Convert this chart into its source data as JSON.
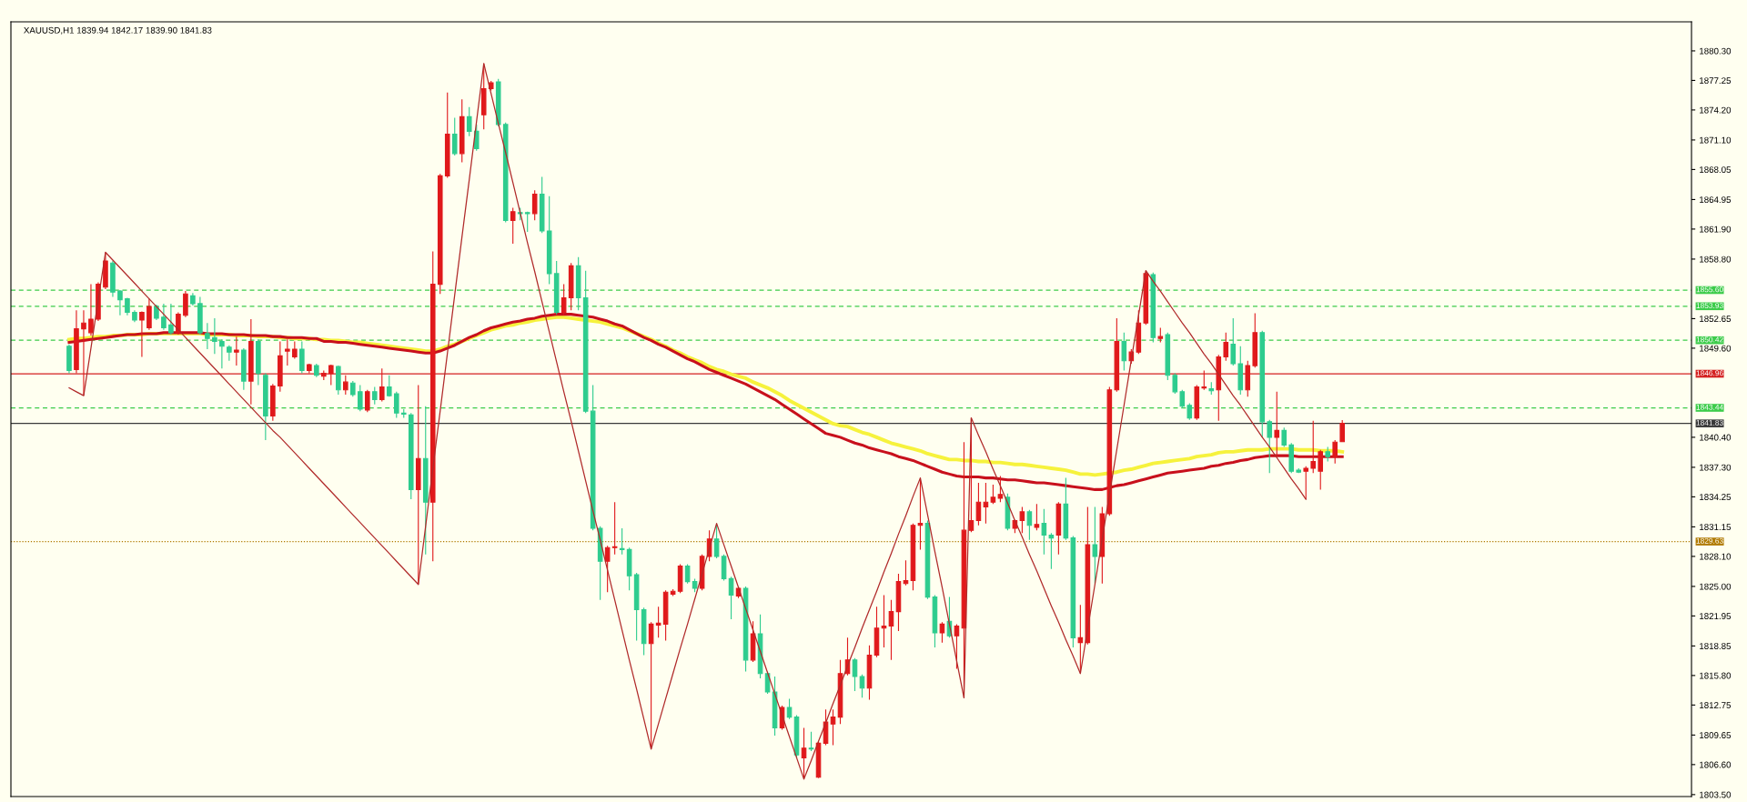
{
  "chart_data": {
    "type": "candlestick",
    "title": "XAUUSD,H1 1839.94 1842.17 1839.90 1841.83",
    "categories": [
      null,
      null,
      null,
      null,
      null,
      null,
      null,
      null,
      null,
      null,
      null,
      null,
      null,
      null,
      null,
      null,
      null,
      null,
      null,
      null,
      null,
      null,
      null,
      null,
      null,
      null,
      null,
      null,
      null,
      null,
      null,
      null,
      null,
      null,
      null,
      null,
      null,
      null,
      null,
      null,
      null,
      null,
      null,
      null,
      null,
      null,
      null,
      null,
      null,
      null,
      null,
      null,
      null,
      null,
      null,
      null,
      null,
      null,
      null,
      null,
      null,
      null,
      null,
      null,
      null,
      null,
      null,
      null,
      null,
      null,
      null,
      null,
      null,
      null,
      null,
      null,
      null,
      null,
      null,
      null,
      null,
      null,
      null,
      null,
      null,
      null,
      null,
      null,
      null,
      null,
      null,
      null,
      null,
      null,
      null,
      null,
      null,
      null,
      null,
      null,
      null,
      null,
      null,
      null,
      null,
      null,
      null,
      null,
      null,
      null,
      null,
      null,
      null,
      null,
      null,
      null,
      null,
      null,
      null,
      null,
      null,
      null,
      null,
      null,
      null,
      null,
      null,
      null,
      null,
      null,
      null,
      null,
      null,
      null,
      null,
      null,
      null,
      null,
      null,
      null,
      null,
      null,
      null,
      null,
      null,
      null,
      null,
      null,
      null,
      null,
      null,
      null,
      null,
      null,
      null,
      null,
      null,
      null,
      null,
      null,
      null,
      null,
      null,
      null,
      null,
      null,
      null,
      null,
      null,
      null,
      null,
      null,
      null,
      null,
      null,
      null
    ],
    "ohlc": [
      [
        1849.8,
        1850.0,
        1847.0,
        1847.3
      ],
      [
        1847.4,
        1853.5,
        1847.0,
        1851.6
      ],
      [
        1851.6,
        1853.5,
        1844.7,
        1852.2
      ],
      [
        1851.2,
        1856.2,
        1850.9,
        1852.6
      ],
      [
        1852.6,
        1856.4,
        1852.4,
        1856.2
      ],
      [
        1855.9,
        1859.5,
        1855.7,
        1858.6
      ],
      [
        1858.4,
        1858.6,
        1854.9,
        1855.4
      ],
      [
        1855.5,
        1855.6,
        1853.0,
        1854.6
      ],
      [
        1854.7,
        1854.8,
        1853.0,
        1853.3
      ],
      [
        1853.3,
        1853.5,
        1852.3,
        1852.5
      ],
      [
        1852.5,
        1853.4,
        1848.7,
        1853.3
      ],
      [
        1851.7,
        1854.7,
        1851.5,
        1853.9
      ],
      [
        1853.9,
        1854.1,
        1852.5,
        1852.7
      ],
      [
        1852.8,
        1854.2,
        1851.5,
        1851.7
      ],
      [
        1852.0,
        1854.2,
        1851.0,
        1851.2
      ],
      [
        1851.2,
        1853.3,
        1851.0,
        1853.1
      ],
      [
        1853.0,
        1855.5,
        1852.8,
        1855.2
      ],
      [
        1855.0,
        1855.3,
        1854.0,
        1854.2
      ],
      [
        1854.2,
        1854.9,
        1851.0,
        1851.2
      ],
      [
        1851.1,
        1852.2,
        1849.5,
        1850.6
      ],
      [
        1850.7,
        1852.7,
        1849.0,
        1850.3
      ],
      [
        1850.3,
        1850.5,
        1847.5,
        1849.8
      ],
      [
        1849.7,
        1849.9,
        1848.3,
        1849.2
      ],
      [
        1849.2,
        1850.8,
        1847.8,
        1849.4
      ],
      [
        1849.4,
        1849.6,
        1845.3,
        1846.2
      ],
      [
        1846.2,
        1852.6,
        1843.8,
        1850.3
      ],
      [
        1850.3,
        1850.5,
        1845.8,
        1847.0
      ],
      [
        1846.8,
        1847.0,
        1840.1,
        1842.6
      ],
      [
        1842.6,
        1845.9,
        1842.1,
        1845.7
      ],
      [
        1845.7,
        1850.3,
        1845.1,
        1848.8
      ],
      [
        1849.3,
        1850.5,
        1847.8,
        1849.5
      ],
      [
        1848.7,
        1850.3,
        1848.5,
        1849.5
      ],
      [
        1849.5,
        1850.3,
        1847.0,
        1847.3
      ],
      [
        1847.3,
        1848.0,
        1847.0,
        1847.9
      ],
      [
        1847.8,
        1848.0,
        1846.6,
        1846.8
      ],
      [
        1846.7,
        1847.3,
        1846.3,
        1847.0
      ],
      [
        1847.0,
        1847.9,
        1845.8,
        1847.8
      ],
      [
        1847.7,
        1847.8,
        1844.8,
        1845.3
      ],
      [
        1845.3,
        1846.8,
        1844.8,
        1846.1
      ],
      [
        1846.0,
        1846.2,
        1844.6,
        1844.8
      ],
      [
        1845.1,
        1845.8,
        1843.1,
        1843.3
      ],
      [
        1843.2,
        1845.3,
        1843.0,
        1845.1
      ],
      [
        1845.1,
        1845.6,
        1843.8,
        1844.3
      ],
      [
        1844.3,
        1847.5,
        1844.1,
        1845.6
      ],
      [
        1845.6,
        1846.8,
        1844.6,
        1844.7
      ],
      [
        1844.9,
        1845.1,
        1842.4,
        1842.9
      ],
      [
        1842.9,
        1843.3,
        1842.4,
        1842.8
      ],
      [
        1842.7,
        1842.9,
        1834.0,
        1835.0
      ],
      [
        1835.0,
        1845.8,
        1825.2,
        1838.2
      ],
      [
        1838.2,
        1843.6,
        1828.3,
        1833.7
      ],
      [
        1833.7,
        1859.6,
        1827.6,
        1856.2
      ],
      [
        1856.2,
        1867.6,
        1855.2,
        1867.4
      ],
      [
        1867.4,
        1876.0,
        1867.2,
        1871.7
      ],
      [
        1871.7,
        1873.4,
        1869.5,
        1869.7
      ],
      [
        1869.7,
        1875.3,
        1868.8,
        1873.5
      ],
      [
        1873.5,
        1874.5,
        1871.5,
        1872.0
      ],
      [
        1872.0,
        1872.7,
        1870.0,
        1870.2
      ],
      [
        1873.7,
        1879.0,
        1872.2,
        1876.4
      ],
      [
        1876.4,
        1877.2,
        1876.2,
        1877.0
      ],
      [
        1877.1,
        1877.4,
        1872.5,
        1872.7
      ],
      [
        1872.7,
        1872.9,
        1862.6,
        1862.8
      ],
      [
        1862.8,
        1864.1,
        1860.4,
        1863.7
      ],
      [
        1863.6,
        1864.1,
        1862.8,
        1863.5
      ],
      [
        1863.6,
        1863.7,
        1861.6,
        1863.5
      ],
      [
        1863.5,
        1865.9,
        1862.8,
        1865.5
      ],
      [
        1865.5,
        1867.3,
        1861.5,
        1861.7
      ],
      [
        1861.7,
        1865.3,
        1856.2,
        1857.3
      ],
      [
        1857.3,
        1858.6,
        1853.1,
        1853.3
      ],
      [
        1853.3,
        1856.2,
        1853.0,
        1854.8
      ],
      [
        1854.8,
        1858.4,
        1853.5,
        1858.1
      ],
      [
        1858.1,
        1859.0,
        1853.5,
        1854.8
      ],
      [
        1854.8,
        1857.6,
        1842.9,
        1843.1
      ],
      [
        1843.1,
        1845.8,
        1830.8,
        1831.0
      ],
      [
        1831.0,
        1831.2,
        1823.6,
        1827.6
      ],
      [
        1827.6,
        1829.2,
        1824.4,
        1829.0
      ],
      [
        1829.0,
        1833.7,
        1828.3,
        1829.1
      ],
      [
        1828.9,
        1831.0,
        1828.3,
        1828.8
      ],
      [
        1828.8,
        1829.0,
        1824.6,
        1826.1
      ],
      [
        1826.2,
        1826.4,
        1819.4,
        1822.6
      ],
      [
        1822.6,
        1822.8,
        1817.9,
        1819.1
      ],
      [
        1819.1,
        1821.3,
        1808.2,
        1821.1
      ],
      [
        1821.0,
        1822.9,
        1819.7,
        1821.2
      ],
      [
        1821.1,
        1824.6,
        1819.4,
        1824.4
      ],
      [
        1824.2,
        1824.7,
        1824.0,
        1824.5
      ],
      [
        1824.5,
        1827.3,
        1824.3,
        1827.1
      ],
      [
        1827.1,
        1827.3,
        1825.3,
        1825.5
      ],
      [
        1825.5,
        1825.8,
        1824.4,
        1824.8
      ],
      [
        1824.8,
        1828.3,
        1824.6,
        1828.1
      ],
      [
        1828.1,
        1830.8,
        1827.6,
        1829.9
      ],
      [
        1829.9,
        1831.5,
        1827.9,
        1828.1
      ],
      [
        1828.1,
        1828.3,
        1825.6,
        1825.8
      ],
      [
        1825.8,
        1826.0,
        1821.6,
        1824.1
      ],
      [
        1824.0,
        1825.0,
        1823.8,
        1824.8
      ],
      [
        1824.8,
        1825.0,
        1816.2,
        1817.4
      ],
      [
        1817.4,
        1821.4,
        1817.2,
        1820.1
      ],
      [
        1820.1,
        1822.1,
        1815.5,
        1816.0
      ],
      [
        1816.0,
        1816.2,
        1813.9,
        1814.1
      ],
      [
        1814.1,
        1815.7,
        1809.6,
        1810.4
      ],
      [
        1810.4,
        1812.7,
        1810.2,
        1812.5
      ],
      [
        1812.5,
        1813.4,
        1811.3,
        1811.5
      ],
      [
        1811.5,
        1811.7,
        1807.3,
        1807.6
      ],
      [
        1807.3,
        1810.4,
        1805.1,
        1808.3
      ],
      [
        1808.3,
        1810.0,
        1808.0,
        1808.2
      ],
      [
        1805.3,
        1809.0,
        1805.2,
        1808.8
      ],
      [
        1808.8,
        1812.3,
        1808.6,
        1811.0
      ],
      [
        1810.8,
        1812.3,
        1808.6,
        1811.5
      ],
      [
        1811.5,
        1817.4,
        1810.8,
        1816.0
      ],
      [
        1816.0,
        1819.7,
        1815.8,
        1817.4
      ],
      [
        1817.4,
        1817.6,
        1814.2,
        1815.7
      ],
      [
        1815.7,
        1815.9,
        1813.5,
        1814.5
      ],
      [
        1814.5,
        1818.9,
        1813.3,
        1817.9
      ],
      [
        1817.9,
        1822.9,
        1817.7,
        1820.7
      ],
      [
        1820.7,
        1824.1,
        1818.7,
        1820.9
      ],
      [
        1820.9,
        1823.6,
        1817.4,
        1822.4
      ],
      [
        1822.4,
        1826.3,
        1820.4,
        1825.5
      ],
      [
        1825.3,
        1827.7,
        1825.1,
        1825.6
      ],
      [
        1825.6,
        1831.5,
        1824.6,
        1831.3
      ],
      [
        1831.3,
        1836.2,
        1828.8,
        1831.5
      ],
      [
        1831.5,
        1831.8,
        1823.7,
        1823.9
      ],
      [
        1823.9,
        1824.1,
        1818.7,
        1820.2
      ],
      [
        1820.2,
        1821.3,
        1819.2,
        1821.1
      ],
      [
        1821.4,
        1823.9,
        1819.7,
        1819.9
      ],
      [
        1819.9,
        1821.1,
        1816.5,
        1820.9
      ],
      [
        1820.7,
        1839.9,
        1813.5,
        1830.8
      ],
      [
        1830.8,
        1842.4,
        1830.6,
        1831.8
      ],
      [
        1831.8,
        1835.7,
        1831.3,
        1833.7
      ],
      [
        1833.2,
        1835.7,
        1831.5,
        1833.7
      ],
      [
        1833.7,
        1835.5,
        1833.5,
        1834.2
      ],
      [
        1834.1,
        1836.4,
        1833.7,
        1834.5
      ],
      [
        1834.2,
        1834.6,
        1830.8,
        1831.0
      ],
      [
        1831.0,
        1831.9,
        1830.5,
        1831.8
      ],
      [
        1831.8,
        1833.2,
        1830.5,
        1832.7
      ],
      [
        1832.7,
        1832.9,
        1829.8,
        1831.3
      ],
      [
        1831.1,
        1833.5,
        1830.8,
        1831.4
      ],
      [
        1831.5,
        1833.0,
        1828.3,
        1830.3
      ],
      [
        1830.3,
        1830.5,
        1826.8,
        1830.0
      ],
      [
        1830.3,
        1833.7,
        1828.3,
        1833.5
      ],
      [
        1833.5,
        1836.2,
        1829.8,
        1830.0
      ],
      [
        1830.0,
        1830.2,
        1818.7,
        1819.7
      ],
      [
        1819.2,
        1823.1,
        1816.0,
        1819.7
      ],
      [
        1819.2,
        1833.2,
        1819.0,
        1829.3
      ],
      [
        1829.3,
        1833.2,
        1825.3,
        1828.1
      ],
      [
        1828.1,
        1833.2,
        1825.3,
        1832.5
      ],
      [
        1832.5,
        1845.6,
        1832.3,
        1845.3
      ],
      [
        1845.3,
        1852.7,
        1845.1,
        1850.3
      ],
      [
        1850.3,
        1851.2,
        1847.3,
        1848.3
      ],
      [
        1848.3,
        1849.5,
        1848.0,
        1849.2
      ],
      [
        1849.2,
        1853.5,
        1849.0,
        1852.2
      ],
      [
        1852.2,
        1857.6,
        1852.0,
        1857.3
      ],
      [
        1857.2,
        1857.4,
        1850.2,
        1850.7
      ],
      [
        1850.6,
        1851.7,
        1850.2,
        1850.8
      ],
      [
        1851.0,
        1851.2,
        1846.3,
        1846.8
      ],
      [
        1846.8,
        1847.0,
        1844.9,
        1845.1
      ],
      [
        1845.1,
        1845.3,
        1843.4,
        1843.6
      ],
      [
        1843.7,
        1843.9,
        1842.2,
        1842.4
      ],
      [
        1842.4,
        1845.8,
        1842.2,
        1845.6
      ],
      [
        1845.5,
        1847.3,
        1845.3,
        1845.6
      ],
      [
        1845.4,
        1846.1,
        1844.8,
        1845.2
      ],
      [
        1845.3,
        1848.9,
        1842.1,
        1848.7
      ],
      [
        1848.7,
        1851.2,
        1848.3,
        1850.2
      ],
      [
        1850.0,
        1852.7,
        1847.8,
        1848.0
      ],
      [
        1848.0,
        1849.8,
        1844.8,
        1845.3
      ],
      [
        1845.3,
        1848.3,
        1844.6,
        1847.8
      ],
      [
        1847.8,
        1853.2,
        1847.6,
        1851.2
      ],
      [
        1851.2,
        1851.4,
        1840.4,
        1842.0
      ],
      [
        1842.0,
        1842.2,
        1836.7,
        1840.4
      ],
      [
        1840.4,
        1845.1,
        1838.4,
        1841.1
      ],
      [
        1841.1,
        1841.4,
        1839.4,
        1839.6
      ],
      [
        1839.6,
        1839.8,
        1836.7,
        1836.9
      ],
      [
        1837.0,
        1837.2,
        1836.7,
        1836.8
      ],
      [
        1836.9,
        1837.4,
        1834.0,
        1837.2
      ],
      [
        1837.2,
        1842.1,
        1836.7,
        1837.9
      ],
      [
        1836.9,
        1839.1,
        1835.0,
        1838.9
      ],
      [
        1838.9,
        1839.4,
        1837.9,
        1838.4
      ],
      [
        1838.4,
        1840.1,
        1837.7,
        1839.9
      ],
      [
        1839.94,
        1842.17,
        1839.9,
        1841.83
      ]
    ],
    "colors": [
      "#2ecc8e",
      "#e0191b",
      "#e0191b",
      "#e0191b",
      "#e0191b",
      "#e0191b",
      "#2ecc8e",
      "#2ecc8e",
      "#2ecc8e",
      "#2ecc8e",
      "#e0191b",
      "#e0191b",
      "#2ecc8e",
      "#2ecc8e",
      "#2ecc8e",
      "#e0191b",
      "#e0191b",
      "#2ecc8e",
      "#2ecc8e",
      "#2ecc8e",
      "#2ecc8e",
      "#2ecc8e",
      "#2ecc8e",
      "#e0191b",
      "#2ecc8e",
      "#e0191b",
      "#2ecc8e",
      "#2ecc8e",
      "#e0191b",
      "#e0191b",
      "#e0191b",
      "#e0191b",
      "#2ecc8e",
      "#e0191b",
      "#2ecc8e",
      "#e0191b",
      "#e0191b",
      "#2ecc8e",
      "#e0191b",
      "#2ecc8e",
      "#2ecc8e",
      "#e0191b",
      "#2ecc8e",
      "#e0191b",
      "#2ecc8e",
      "#2ecc8e",
      "#2ecc8e",
      "#2ecc8e",
      "#e0191b",
      "#2ecc8e",
      "#e0191b",
      "#e0191b",
      "#e0191b",
      "#2ecc8e",
      "#e0191b",
      "#2ecc8e",
      "#2ecc8e",
      "#e0191b",
      "#e0191b",
      "#2ecc8e",
      "#2ecc8e",
      "#e0191b",
      "#2ecc8e",
      "#2ecc8e",
      "#e0191b",
      "#2ecc8e",
      "#2ecc8e",
      "#2ecc8e",
      "#e0191b",
      "#e0191b",
      "#2ecc8e",
      "#2ecc8e",
      "#2ecc8e",
      "#2ecc8e",
      "#e0191b",
      "#e0191b",
      "#2ecc8e",
      "#2ecc8e",
      "#2ecc8e",
      "#2ecc8e",
      "#e0191b",
      "#e0191b",
      "#e0191b",
      "#e0191b",
      "#e0191b",
      "#2ecc8e",
      "#2ecc8e",
      "#e0191b",
      "#e0191b",
      "#2ecc8e",
      "#2ecc8e",
      "#2ecc8e",
      "#e0191b",
      "#2ecc8e",
      "#e0191b",
      "#2ecc8e",
      "#2ecc8e",
      "#2ecc8e",
      "#e0191b",
      "#2ecc8e",
      "#2ecc8e",
      "#e0191b",
      "#2ecc8e",
      "#e0191b",
      "#e0191b",
      "#e0191b",
      "#e0191b",
      "#e0191b",
      "#2ecc8e",
      "#2ecc8e",
      "#e0191b",
      "#e0191b",
      "#e0191b",
      "#e0191b",
      "#e0191b",
      "#e0191b",
      "#e0191b",
      "#e0191b",
      "#2ecc8e",
      "#2ecc8e",
      "#e0191b",
      "#2ecc8e",
      "#e0191b",
      "#e0191b",
      "#e0191b",
      "#e0191b",
      "#e0191b",
      "#e0191b",
      "#e0191b",
      "#2ecc8e",
      "#e0191b",
      "#e0191b",
      "#2ecc8e",
      "#e0191b",
      "#2ecc8e",
      "#2ecc8e",
      "#e0191b",
      "#2ecc8e",
      "#2ecc8e",
      "#e0191b",
      "#e0191b",
      "#2ecc8e",
      "#e0191b",
      "#e0191b",
      "#e0191b",
      "#2ecc8e",
      "#e0191b",
      "#e0191b",
      "#e0191b",
      "#2ecc8e",
      "#e0191b",
      "#2ecc8e",
      "#2ecc8e",
      "#2ecc8e",
      "#2ecc8e",
      "#e0191b",
      "#e0191b",
      "#2ecc8e",
      "#e0191b",
      "#e0191b",
      "#2ecc8e",
      "#2ecc8e",
      "#e0191b",
      "#e0191b",
      "#2ecc8e",
      "#2ecc8e",
      "#e0191b",
      "#2ecc8e",
      "#2ecc8e",
      "#2ecc8e",
      "#e0191b",
      "#e0191b",
      "#e0191b",
      "#2ecc8e",
      "#e0191b",
      "#e0191b"
    ],
    "series": [
      {
        "type": "line",
        "color": "#f6f23c",
        "values": [
          1850.5,
          1850.6,
          1850.6,
          1850.7,
          1850.8,
          1850.8,
          1850.9,
          1850.9,
          1851.0,
          1851.0,
          1851.0,
          1851.1,
          1851.1,
          1851.1,
          1851.1,
          1851.1,
          1851.1,
          1851.1,
          1851.1,
          1851.0,
          1851.0,
          1851.0,
          1851.0,
          1850.9,
          1850.9,
          1850.9,
          1850.8,
          1850.8,
          1850.8,
          1850.7,
          1850.7,
          1850.6,
          1850.6,
          1850.6,
          1850.5,
          1850.5,
          1850.4,
          1850.4,
          1850.3,
          1850.2,
          1850.2,
          1850.1,
          1850.0,
          1849.9,
          1849.8,
          1849.7,
          1849.6,
          1849.5,
          1849.4,
          1849.3,
          1849.3,
          1849.5,
          1849.8,
          1850.0,
          1850.3,
          1850.6,
          1850.9,
          1851.2,
          1851.5,
          1851.7,
          1851.9,
          1852.0,
          1852.2,
          1852.3,
          1852.5,
          1852.6,
          1852.7,
          1852.8,
          1852.8,
          1852.7,
          1852.6,
          1852.5,
          1852.4,
          1852.3,
          1852.1,
          1851.9,
          1851.7,
          1851.4,
          1851.1,
          1850.8,
          1850.5,
          1850.1,
          1849.8,
          1849.4,
          1849.1,
          1848.7,
          1848.4,
          1848.1,
          1847.7,
          1847.4,
          1847.2,
          1846.9,
          1846.7,
          1846.5,
          1846.1,
          1845.8,
          1845.5,
          1845.1,
          1844.7,
          1844.2,
          1843.8,
          1843.4,
          1843.0,
          1842.6,
          1842.2,
          1841.8,
          1841.6,
          1841.5,
          1841.2,
          1840.9,
          1840.7,
          1840.4,
          1840.1,
          1839.8,
          1839.6,
          1839.4,
          1839.2,
          1839.0,
          1838.7,
          1838.5,
          1838.3,
          1838.1,
          1838.1,
          1838.0,
          1838.0,
          1837.9,
          1837.9,
          1837.8,
          1837.8,
          1837.7,
          1837.6,
          1837.6,
          1837.5,
          1837.4,
          1837.3,
          1837.2,
          1837.1,
          1837.0,
          1836.8,
          1836.6,
          1836.6,
          1836.5,
          1836.6,
          1836.7,
          1836.8,
          1837.0,
          1837.1,
          1837.3,
          1837.5,
          1837.7,
          1837.8,
          1837.9,
          1838.0,
          1838.1,
          1838.2,
          1838.4,
          1838.5,
          1838.6,
          1838.8,
          1838.9,
          1838.9,
          1839.0,
          1839.1,
          1839.1,
          1839.1,
          1839.2,
          1839.2,
          1839.2,
          1839.2,
          1839.1,
          1839.1,
          1839.1,
          1839.0,
          1839.0,
          1839.0,
          1838.9
        ]
      },
      {
        "type": "line",
        "color": "#c8101c",
        "values": [
          1850.2,
          1850.3,
          1850.4,
          1850.5,
          1850.6,
          1850.7,
          1850.8,
          1850.9,
          1851.0,
          1851.0,
          1851.1,
          1851.1,
          1851.1,
          1851.2,
          1851.2,
          1851.2,
          1851.2,
          1851.2,
          1851.2,
          1851.1,
          1851.1,
          1851.1,
          1851.0,
          1851.0,
          1851.0,
          1850.9,
          1850.9,
          1850.9,
          1850.8,
          1850.8,
          1850.7,
          1850.7,
          1850.7,
          1850.6,
          1850.6,
          1850.3,
          1850.3,
          1850.2,
          1850.2,
          1850.1,
          1850.0,
          1849.9,
          1849.8,
          1849.7,
          1849.6,
          1849.5,
          1849.4,
          1849.3,
          1849.2,
          1849.1,
          1849.1,
          1849.3,
          1849.6,
          1849.9,
          1850.3,
          1850.7,
          1851.0,
          1851.4,
          1851.7,
          1851.9,
          1852.1,
          1852.3,
          1852.4,
          1852.6,
          1852.7,
          1852.9,
          1853.0,
          1853.1,
          1853.1,
          1853.1,
          1853.0,
          1852.9,
          1852.8,
          1852.6,
          1852.4,
          1852.1,
          1851.9,
          1851.5,
          1851.1,
          1850.7,
          1850.4,
          1850.0,
          1849.7,
          1849.3,
          1848.9,
          1848.5,
          1848.2,
          1847.8,
          1847.4,
          1847.1,
          1846.8,
          1846.5,
          1846.2,
          1845.9,
          1845.5,
          1845.1,
          1844.7,
          1844.3,
          1843.8,
          1843.3,
          1842.8,
          1842.3,
          1841.8,
          1841.3,
          1840.8,
          1840.6,
          1840.4,
          1840.1,
          1839.8,
          1839.6,
          1839.3,
          1839.1,
          1838.9,
          1838.7,
          1838.4,
          1838.2,
          1838.0,
          1837.7,
          1837.4,
          1837.1,
          1836.8,
          1836.6,
          1836.4,
          1836.3,
          1836.3,
          1836.3,
          1836.2,
          1836.2,
          1836.1,
          1836.0,
          1836.0,
          1835.9,
          1835.8,
          1835.7,
          1835.7,
          1835.6,
          1835.5,
          1835.4,
          1835.3,
          1835.2,
          1835.1,
          1835.0,
          1835.0,
          1835.2,
          1835.4,
          1835.5,
          1835.7,
          1835.9,
          1836.1,
          1836.3,
          1836.5,
          1836.7,
          1836.8,
          1836.9,
          1837.0,
          1837.1,
          1837.2,
          1837.4,
          1837.5,
          1837.7,
          1837.8,
          1838.0,
          1838.1,
          1838.3,
          1838.4,
          1838.5,
          1838.5,
          1838.5,
          1838.5,
          1838.4,
          1838.4,
          1838.4,
          1838.4,
          1838.4,
          1838.4,
          1838.4
        ]
      },
      {
        "type": "line",
        "color": "#b02a2a",
        "values": [
          1845.5,
          1845.1,
          1844.7,
          1849.6,
          1854.6,
          1859.5,
          1858.7,
          1857.9,
          1857.1,
          1856.3,
          1855.5,
          1854.7,
          1853.9,
          1853.1,
          1852.3,
          1851.5,
          1850.7,
          1849.9,
          1849.1,
          1848.3,
          1847.5,
          1846.7,
          1845.9,
          1845.1,
          1844.3,
          1843.5,
          1842.7,
          1841.9,
          1841.1,
          1840.4,
          1839.6,
          1838.8,
          1838.0,
          1837.2,
          1836.4,
          1835.6,
          1834.8,
          1834.0,
          1833.2,
          1832.4,
          1831.6,
          1830.8,
          1830.0,
          1829.2,
          1828.4,
          1827.6,
          1826.8,
          1826.0,
          1825.2,
          1831.2,
          1837.2,
          1843.1,
          1849.1,
          1855.1,
          1861.1,
          1867.0,
          1873.0,
          1879.0,
          1875.9,
          1872.8,
          1869.8,
          1866.7,
          1863.6,
          1860.5,
          1857.5,
          1854.4,
          1851.3,
          1848.2,
          1845.1,
          1842.1,
          1839.0,
          1835.9,
          1832.8,
          1829.8,
          1826.7,
          1823.6,
          1820.5,
          1817.4,
          1814.4,
          1811.3,
          1808.2,
          1810.8,
          1813.4,
          1816.0,
          1818.6,
          1821.1,
          1823.7,
          1826.3,
          1828.9,
          1831.5,
          1829.3,
          1827.1,
          1824.9,
          1822.7,
          1820.5,
          1818.3,
          1816.1,
          1813.9,
          1811.7,
          1809.5,
          1807.3,
          1805.1,
          1807.0,
          1809.0,
          1810.9,
          1812.9,
          1814.8,
          1816.8,
          1818.7,
          1820.7,
          1822.6,
          1824.5,
          1826.5,
          1828.4,
          1830.4,
          1832.3,
          1834.3,
          1836.2,
          1832.4,
          1828.6,
          1824.9,
          1821.1,
          1817.3,
          1813.5,
          1842.4,
          1840.6,
          1838.9,
          1837.1,
          1835.4,
          1833.6,
          1831.8,
          1830.1,
          1828.3,
          1826.6,
          1824.8,
          1823.0,
          1821.3,
          1819.5,
          1817.8,
          1816.0,
          1820.6,
          1825.2,
          1829.9,
          1834.5,
          1839.1,
          1843.7,
          1848.4,
          1853.0,
          1857.6,
          1856.5,
          1855.5,
          1854.4,
          1853.3,
          1852.2,
          1851.2,
          1850.1,
          1849.0,
          1848.0,
          1846.9,
          1845.8,
          1844.7,
          1843.7,
          1842.6,
          1841.5,
          1840.4,
          1839.4,
          1838.3,
          1837.2,
          1836.1,
          1835.1,
          1834.0,
          null,
          null,
          null,
          null,
          null
        ]
      }
    ],
    "ylim": [
      1803.3,
      1883.3
    ],
    "yticks": [
      {
        "value": 1880.3,
        "label": "1880.30"
      },
      {
        "value": 1877.25,
        "label": "1877.25"
      },
      {
        "value": 1874.2,
        "label": "1874.20"
      },
      {
        "value": 1871.1,
        "label": "1871.10"
      },
      {
        "value": 1868.05,
        "label": "1868.05"
      },
      {
        "value": 1864.95,
        "label": "1864.95"
      },
      {
        "value": 1861.9,
        "label": "1861.90"
      },
      {
        "value": 1858.8,
        "label": "1858.80"
      },
      {
        "value": 1852.65,
        "label": "1852.65"
      },
      {
        "value": 1849.6,
        "label": "1849.60"
      },
      {
        "value": 1840.4,
        "label": "1840.40"
      },
      {
        "value": 1837.3,
        "label": "1837.30"
      },
      {
        "value": 1834.25,
        "label": "1834.25"
      },
      {
        "value": 1831.15,
        "label": "1831.15"
      },
      {
        "value": 1828.1,
        "label": "1828.10"
      },
      {
        "value": 1825.0,
        "label": "1825.00"
      },
      {
        "value": 1821.95,
        "label": "1821.95"
      },
      {
        "value": 1818.85,
        "label": "1818.85"
      },
      {
        "value": 1815.8,
        "label": "1815.80"
      },
      {
        "value": 1812.75,
        "label": "1812.75"
      },
      {
        "value": 1809.65,
        "label": "1809.65"
      },
      {
        "value": 1806.6,
        "label": "1806.60"
      },
      {
        "value": 1803.5,
        "label": "1803.50"
      }
    ],
    "ref_lines": [
      {
        "axis": "y",
        "value": 1855.6,
        "label": "1855.60",
        "color": "#3ccc4a",
        "line_style": "dashed"
      },
      {
        "axis": "y",
        "value": 1853.93,
        "label": "1853.93",
        "color": "#3ccc4a",
        "line_style": "dashed"
      },
      {
        "axis": "y",
        "value": 1850.42,
        "label": "1850.42",
        "color": "#3ccc4a",
        "line_style": "dashed"
      },
      {
        "axis": "y",
        "value": 1846.96,
        "label": "1846.96",
        "color": "#d42020",
        "line_style": "solid"
      },
      {
        "axis": "y",
        "value": 1843.44,
        "label": "1843.44",
        "color": "#3ccc4a",
        "line_style": "dashed"
      },
      {
        "axis": "y",
        "value": 1841.83,
        "label": "1841.83",
        "color": "#3a3a3a",
        "line_style": "solid"
      },
      {
        "axis": "y",
        "value": 1829.63,
        "label": "1829.63",
        "color": "#b07a00",
        "line_style": "dotted"
      }
    ],
    "tick_labels": "y"
  }
}
